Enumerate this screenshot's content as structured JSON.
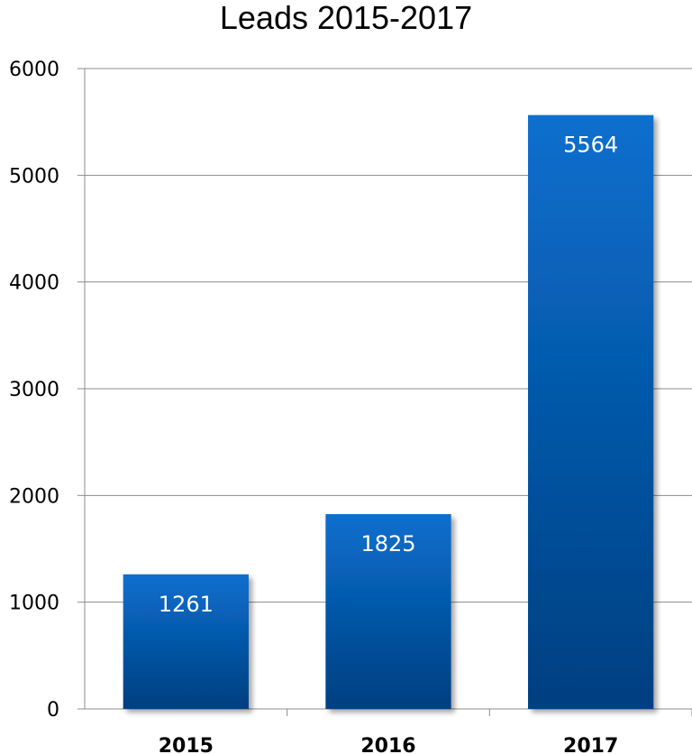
{
  "chart_data": {
    "type": "bar",
    "title": "Leads 2015-2017",
    "categories": [
      "2015",
      "2016",
      "2017"
    ],
    "values": [
      1261,
      1825,
      5564
    ],
    "data_labels": [
      "1261",
      "1825",
      "5564"
    ],
    "y_ticks": [
      "0",
      "1000",
      "2000",
      "3000",
      "4000",
      "5000",
      "6000"
    ],
    "ylim": [
      0,
      6000
    ],
    "grid": true,
    "bar_color_top": "#0a6fce",
    "bar_color_bottom": "#003f80",
    "legend": "none"
  }
}
